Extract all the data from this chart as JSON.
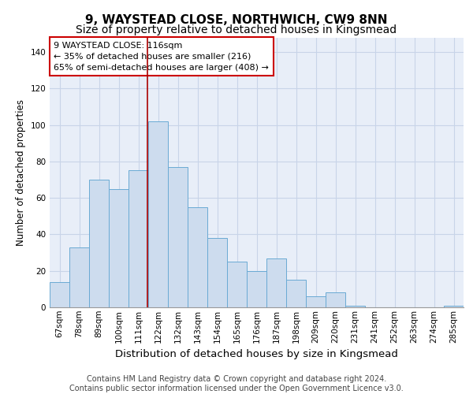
{
  "title": "9, WAYSTEAD CLOSE, NORTHWICH, CW9 8NN",
  "subtitle": "Size of property relative to detached houses in Kingsmead",
  "xlabel": "Distribution of detached houses by size in Kingsmead",
  "ylabel": "Number of detached properties",
  "categories": [
    "67sqm",
    "78sqm",
    "89sqm",
    "100sqm",
    "111sqm",
    "122sqm",
    "132sqm",
    "143sqm",
    "154sqm",
    "165sqm",
    "176sqm",
    "187sqm",
    "198sqm",
    "209sqm",
    "220sqm",
    "231sqm",
    "241sqm",
    "252sqm",
    "263sqm",
    "274sqm",
    "285sqm"
  ],
  "bar_values": [
    14,
    33,
    70,
    65,
    75,
    102,
    77,
    55,
    38,
    25,
    20,
    27,
    15,
    6,
    8,
    1,
    0,
    0,
    0,
    0,
    1
  ],
  "bar_color": "#cddcee",
  "bar_edge_color": "#6aaad4",
  "grid_color": "#c8d4e8",
  "background_color": "#e8eef8",
  "vline_x_index": 4.45,
  "vline_color": "#aa0000",
  "annotation_box_text": "9 WAYSTEAD CLOSE: 116sqm\n← 35% of detached houses are smaller (216)\n65% of semi-detached houses are larger (408) →",
  "annotation_box_color": "#cc0000",
  "footer_text": "Contains HM Land Registry data © Crown copyright and database right 2024.\nContains public sector information licensed under the Open Government Licence v3.0.",
  "ylim": [
    0,
    148
  ],
  "yticks": [
    0,
    20,
    40,
    60,
    80,
    100,
    120,
    140
  ],
  "title_fontsize": 11,
  "subtitle_fontsize": 10,
  "ylabel_fontsize": 8.5,
  "xlabel_fontsize": 9.5,
  "tick_fontsize": 7.5,
  "footer_fontsize": 7,
  "annot_fontsize": 8
}
